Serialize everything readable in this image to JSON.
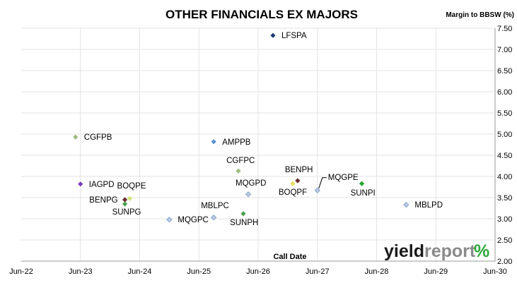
{
  "chart_data": {
    "type": "scatter",
    "title": "OTHER FINANCIALS EX MAJORS",
    "xlabel": "Call Date",
    "ylabel": "Margin to BBSW (%)",
    "x_ticks": [
      "Jun-22",
      "Jun-23",
      "Jun-24",
      "Jun-25",
      "Jun-26",
      "Jun-27",
      "Jun-28",
      "Jun-29",
      "Jun-30"
    ],
    "y_ticks": [
      "2.00",
      "2.50",
      "3.00",
      "3.50",
      "4.00",
      "4.50",
      "5.00",
      "5.50",
      "6.00",
      "6.50",
      "7.00",
      "7.50"
    ],
    "xlim": [
      "Jun-22",
      "Jun-30"
    ],
    "ylim": [
      2.0,
      7.5
    ],
    "grid": true,
    "points": [
      {
        "label": "LFSPA",
        "x": "2026-09",
        "y": 7.33,
        "color": "#1f3b6e"
      },
      {
        "label": "CGFPB",
        "x": "2023-05",
        "y": 4.93,
        "color": "#9bbb7a"
      },
      {
        "label": "AMPPB",
        "x": "2025-09",
        "y": 4.82,
        "color": "#5b8fd1"
      },
      {
        "label": "CGFPC",
        "x": "2026-02",
        "y": 4.13,
        "color": "#9bbb7a"
      },
      {
        "label": "BENPH",
        "x": "2027-02",
        "y": 3.9,
        "color": "#6b2d2d"
      },
      {
        "label": "MQGPE",
        "x": "2027-06",
        "y": 3.67,
        "color": "#b5c9e3"
      },
      {
        "label": "IAGPD",
        "x": "2023-06",
        "y": 3.82,
        "color": "#7a3db0"
      },
      {
        "label": "BOQPE",
        "x": "2024-04",
        "y": 3.48,
        "color": "#d4e37a"
      },
      {
        "label": "MQGPD",
        "x": "2026-04",
        "y": 3.58,
        "color": "#b5c9e3"
      },
      {
        "label": "BOQPF",
        "x": "2027-01",
        "y": 3.83,
        "color": "#e3df5a"
      },
      {
        "label": "SUNPI",
        "x": "2028-03",
        "y": 3.83,
        "color": "#22a32a"
      },
      {
        "label": "BENPG",
        "x": "2024-03",
        "y": 3.45,
        "color": "#6b2d2d"
      },
      {
        "label": "SUNPG",
        "x": "2024-03",
        "y": 3.35,
        "color": "#4a9e4a"
      },
      {
        "label": "MBLPD",
        "x": "2028-12",
        "y": 3.33,
        "color": "#b5c9e3"
      },
      {
        "label": "MQGPC",
        "x": "2024-12",
        "y": 2.98,
        "color": "#b5c9e3"
      },
      {
        "label": "MBLPC",
        "x": "2025-09",
        "y": 3.03,
        "color": "#b5c9e3"
      },
      {
        "label": "SUNPH",
        "x": "2026-03",
        "y": 3.12,
        "color": "#4a9e4a"
      }
    ]
  },
  "logo": {
    "part1": "yield",
    "part2": "report",
    "symbol": "%",
    "colors": {
      "part1": "#1a1a1a",
      "part2": "#8a8a8a",
      "slash": "#2fa83a",
      "dots": "#d42020"
    }
  }
}
